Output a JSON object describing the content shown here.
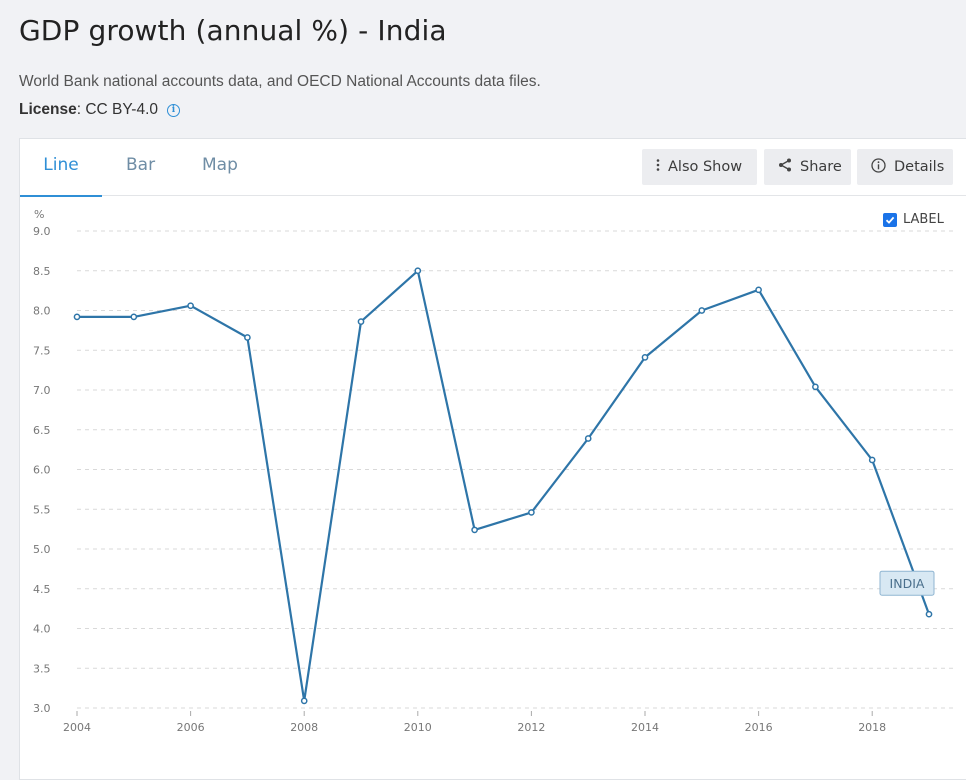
{
  "header": {
    "title": "GDP growth (annual %) - India",
    "source": "World Bank national accounts data, and OECD National Accounts data files.",
    "license_label": "License",
    "license_value": " : CC BY-4.0"
  },
  "tabs": [
    {
      "label": "Line",
      "active": true
    },
    {
      "label": "Bar",
      "active": false
    },
    {
      "label": "Map",
      "active": false
    }
  ],
  "toolbar": {
    "also_show": "Also Show",
    "share": "Share",
    "details": "Details"
  },
  "label_toggle": {
    "text": "LABEL",
    "checked": true
  },
  "colors": {
    "line": "#2e75a8",
    "accent": "#2f8fd6",
    "label_bg": "#d8e8f3"
  },
  "chart_data": {
    "type": "line",
    "ylabel": "%",
    "ylim": [
      3.0,
      9.0
    ],
    "yticks": [
      "3.0",
      "3.5",
      "4.0",
      "4.5",
      "5.0",
      "5.5",
      "6.0",
      "6.5",
      "7.0",
      "7.5",
      "8.0",
      "8.5",
      "9.0"
    ],
    "xticks": [
      "2004",
      "2006",
      "2008",
      "2010",
      "2012",
      "2014",
      "2016",
      "2018"
    ],
    "grid": true,
    "series": [
      {
        "name": "INDIA",
        "x": [
          2004,
          2005,
          2006,
          2007,
          2008,
          2009,
          2010,
          2011,
          2012,
          2013,
          2014,
          2015,
          2016,
          2017,
          2018,
          2019
        ],
        "values": [
          7.92,
          7.92,
          8.06,
          7.66,
          3.09,
          7.86,
          8.5,
          5.24,
          5.46,
          6.39,
          7.41,
          8.0,
          8.26,
          7.04,
          6.12,
          4.18
        ]
      }
    ]
  }
}
